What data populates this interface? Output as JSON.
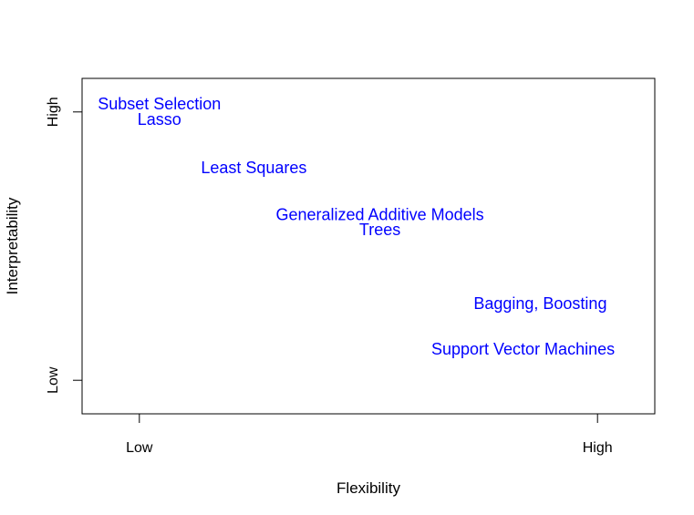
{
  "chart_data": {
    "type": "scatter",
    "title": "",
    "xlabel": "Flexibility",
    "ylabel": "Interpretability",
    "xlim": [
      0,
      1
    ],
    "ylim": [
      0,
      1
    ],
    "x_ticks": [
      {
        "value": 0.1,
        "label": "Low"
      },
      {
        "value": 0.9,
        "label": "High"
      }
    ],
    "y_ticks": [
      {
        "value": 0.1,
        "label": "Low"
      },
      {
        "value": 0.9,
        "label": "High"
      }
    ],
    "grid": false,
    "label_color": "#0000ff",
    "points": [
      {
        "label": "Subset Selection",
        "x": 0.135,
        "y": 0.92
      },
      {
        "label": "Lasso",
        "x": 0.135,
        "y": 0.875
      },
      {
        "label": "Least Squares",
        "x": 0.3,
        "y": 0.73
      },
      {
        "label": "Generalized Additive Models",
        "x": 0.52,
        "y": 0.59
      },
      {
        "label": "Trees",
        "x": 0.52,
        "y": 0.545
      },
      {
        "label": "Bagging, Boosting",
        "x": 0.8,
        "y": 0.325
      },
      {
        "label": "Support Vector Machines",
        "x": 0.77,
        "y": 0.19
      }
    ]
  }
}
